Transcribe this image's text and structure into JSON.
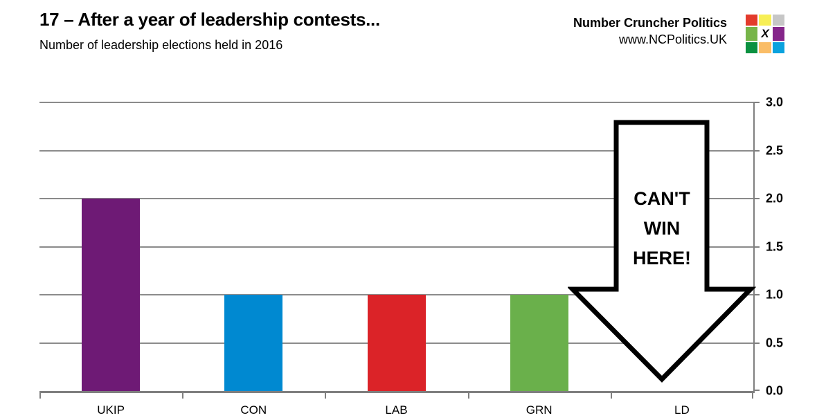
{
  "header": {
    "title": "17 – After a year of leadership contests...",
    "subtitle": "Number of leadership elections held in 2016"
  },
  "branding": {
    "name": "Number Cruncher Politics",
    "url": "www.NCPolitics.UK",
    "logo_x": "X",
    "logo_cells": [
      "#e33b2c",
      "#f7ef55",
      "#c6c6c6",
      "#77b549",
      "X",
      "#85258a",
      "#0b9140",
      "#fabd67",
      "#0aa2de"
    ]
  },
  "chart_data": {
    "type": "bar",
    "title": "Number of leadership elections held in 2016",
    "categories": [
      "UKIP",
      "CON",
      "LAB",
      "GRN",
      "LD"
    ],
    "values": [
      2,
      1,
      1,
      1,
      0
    ],
    "bar_colors": [
      "#6e1a75",
      "#0089d1",
      "#db2328",
      "#6ab04b",
      null
    ],
    "xlabel": "",
    "ylabel": "",
    "ylim": [
      0,
      3
    ],
    "ytick_step": 0.5,
    "ytick_labels": [
      "3.0",
      "2.5",
      "2.0",
      "1.5",
      "1.0",
      "0.5",
      "0.0"
    ],
    "grid": true,
    "grid_color": "#8b8b8b",
    "axis_color": "#7f7f7f",
    "legend": "none",
    "annotation": {
      "target": "LD",
      "lines": [
        "CAN'T",
        "WIN",
        "HERE!"
      ],
      "shape": "down-arrow",
      "fill": "#ffffff",
      "stroke": "#000000"
    }
  }
}
